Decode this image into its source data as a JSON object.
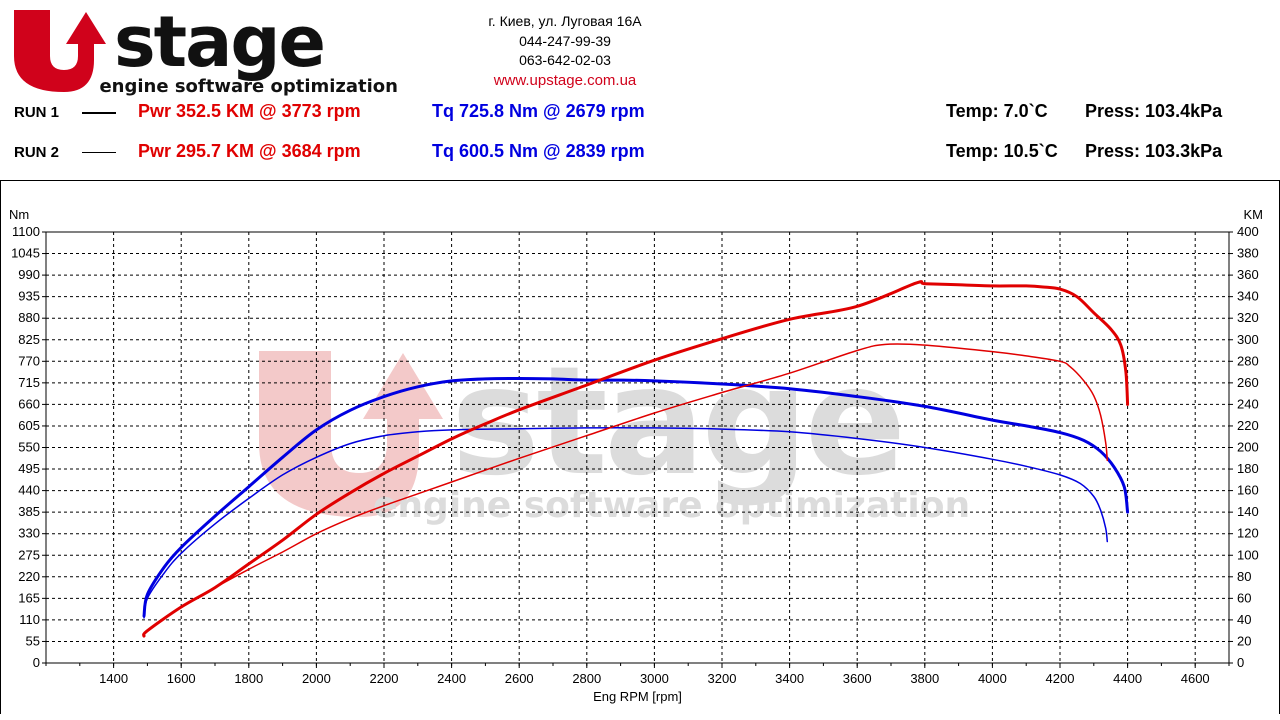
{
  "header": {
    "logo": {
      "wordmark_left": "U",
      "wordmark_right": "stage",
      "tagline": "engine software optimization"
    },
    "contact": {
      "address": "г. Киев, ул. Луговая 16А",
      "phone1": "044-247-99-39",
      "phone2": "063-642-02-03",
      "website": "www.upstage.com.ua"
    }
  },
  "runs": [
    {
      "label": "RUN 1",
      "pwr": "Pwr  352.5 KM @ 3773 rpm",
      "tq": "Tq 725.8 Nm @ 2679 rpm",
      "temp": "Temp: 7.0`C",
      "press": "Press: 103.4kPa"
    },
    {
      "label": "RUN 2",
      "pwr": "Pwr  295.7 KM @ 3684 rpm",
      "tq": "Tq 600.5 Nm @ 2839 rpm",
      "temp": "Temp: 10.5`C",
      "press": "Press: 103.3kPa"
    }
  ],
  "colors": {
    "power": "#e00000",
    "torque": "#0000e0",
    "brand_red": "#d0021b",
    "grid": "#000000",
    "watermark_red": "#f3c9c9",
    "watermark_gray": "#dcdcdc"
  },
  "chart_data": {
    "type": "line",
    "xlabel": "Eng RPM [rpm]",
    "ylabel_left": "Nm",
    "ylabel_right": "KM",
    "xlim": [
      1200,
      4700
    ],
    "ylim_left": [
      0,
      1100
    ],
    "ylim_right": [
      0,
      400
    ],
    "x_ticks": [
      1400,
      1600,
      1800,
      2000,
      2200,
      2400,
      2600,
      2800,
      3000,
      3200,
      3400,
      3600,
      3800,
      4000,
      4200,
      4400,
      4600
    ],
    "y_left_ticks": [
      0,
      55,
      110,
      165,
      220,
      275,
      330,
      385,
      440,
      495,
      550,
      605,
      660,
      715,
      770,
      825,
      880,
      935,
      990,
      1045,
      1100
    ],
    "y_right_ticks": [
      0,
      20,
      40,
      60,
      80,
      100,
      120,
      140,
      160,
      180,
      200,
      220,
      240,
      260,
      280,
      300,
      320,
      340,
      360,
      380,
      400
    ],
    "grid": true,
    "series": [
      {
        "run": "RUN 1",
        "kind": "torque",
        "axis": "left",
        "color": "#0000e0",
        "thick": true,
        "points": [
          [
            1490,
            120
          ],
          [
            1500,
            175
          ],
          [
            1550,
            245
          ],
          [
            1600,
            295
          ],
          [
            1700,
            375
          ],
          [
            1800,
            450
          ],
          [
            1900,
            525
          ],
          [
            2000,
            595
          ],
          [
            2100,
            645
          ],
          [
            2200,
            680
          ],
          [
            2300,
            705
          ],
          [
            2400,
            720
          ],
          [
            2500,
            725
          ],
          [
            2600,
            726
          ],
          [
            2700,
            725
          ],
          [
            2800,
            722
          ],
          [
            2900,
            722
          ],
          [
            3000,
            720
          ],
          [
            3200,
            712
          ],
          [
            3400,
            700
          ],
          [
            3600,
            680
          ],
          [
            3800,
            655
          ],
          [
            4000,
            620
          ],
          [
            4100,
            605
          ],
          [
            4200,
            588
          ],
          [
            4270,
            568
          ],
          [
            4320,
            540
          ],
          [
            4360,
            500
          ],
          [
            4390,
            450
          ],
          [
            4400,
            385
          ]
        ]
      },
      {
        "run": "RUN 2",
        "kind": "torque",
        "axis": "left",
        "color": "#0000e0",
        "thick": false,
        "points": [
          [
            1490,
            115
          ],
          [
            1500,
            165
          ],
          [
            1550,
            230
          ],
          [
            1600,
            280
          ],
          [
            1700,
            355
          ],
          [
            1800,
            420
          ],
          [
            1900,
            480
          ],
          [
            2000,
            525
          ],
          [
            2100,
            560
          ],
          [
            2200,
            580
          ],
          [
            2300,
            590
          ],
          [
            2400,
            595
          ],
          [
            2600,
            598
          ],
          [
            2800,
            600
          ],
          [
            3000,
            600
          ],
          [
            3200,
            597
          ],
          [
            3400,
            590
          ],
          [
            3600,
            573
          ],
          [
            3800,
            550
          ],
          [
            4000,
            520
          ],
          [
            4100,
            502
          ],
          [
            4200,
            480
          ],
          [
            4260,
            458
          ],
          [
            4300,
            425
          ],
          [
            4320,
            390
          ],
          [
            4335,
            345
          ],
          [
            4340,
            310
          ]
        ]
      },
      {
        "run": "RUN 1",
        "kind": "power",
        "axis": "right",
        "color": "#e00000",
        "thick": true,
        "points": [
          [
            1490,
            25
          ],
          [
            1500,
            30
          ],
          [
            1600,
            52
          ],
          [
            1700,
            70
          ],
          [
            1800,
            92
          ],
          [
            1900,
            114
          ],
          [
            2000,
            138
          ],
          [
            2100,
            158
          ],
          [
            2200,
            176
          ],
          [
            2300,
            192
          ],
          [
            2400,
            208
          ],
          [
            2500,
            222
          ],
          [
            2600,
            235
          ],
          [
            2800,
            258
          ],
          [
            3000,
            281
          ],
          [
            3200,
            301
          ],
          [
            3400,
            319
          ],
          [
            3600,
            331
          ],
          [
            3773,
            352.5
          ],
          [
            3800,
            352
          ],
          [
            3900,
            351
          ],
          [
            4000,
            350
          ],
          [
            4100,
            350
          ],
          [
            4150,
            349
          ],
          [
            4200,
            347
          ],
          [
            4250,
            340
          ],
          [
            4300,
            325
          ],
          [
            4350,
            310
          ],
          [
            4380,
            295
          ],
          [
            4395,
            270
          ],
          [
            4400,
            240
          ]
        ]
      },
      {
        "run": "RUN 2",
        "kind": "power",
        "axis": "right",
        "color": "#e00000",
        "thick": false,
        "points": [
          [
            1490,
            27
          ],
          [
            1500,
            30
          ],
          [
            1600,
            52
          ],
          [
            1700,
            70
          ],
          [
            1800,
            87
          ],
          [
            1900,
            103
          ],
          [
            2000,
            120
          ],
          [
            2100,
            134
          ],
          [
            2200,
            146
          ],
          [
            2300,
            157
          ],
          [
            2400,
            168
          ],
          [
            2600,
            190
          ],
          [
            2800,
            211
          ],
          [
            3000,
            232
          ],
          [
            3200,
            251
          ],
          [
            3400,
            269
          ],
          [
            3600,
            290
          ],
          [
            3684,
            295.7
          ],
          [
            3800,
            295
          ],
          [
            4000,
            289
          ],
          [
            4100,
            285
          ],
          [
            4200,
            280
          ],
          [
            4230,
            275
          ],
          [
            4270,
            262
          ],
          [
            4300,
            248
          ],
          [
            4320,
            230
          ],
          [
            4335,
            205
          ],
          [
            4340,
            188
          ]
        ]
      }
    ]
  }
}
